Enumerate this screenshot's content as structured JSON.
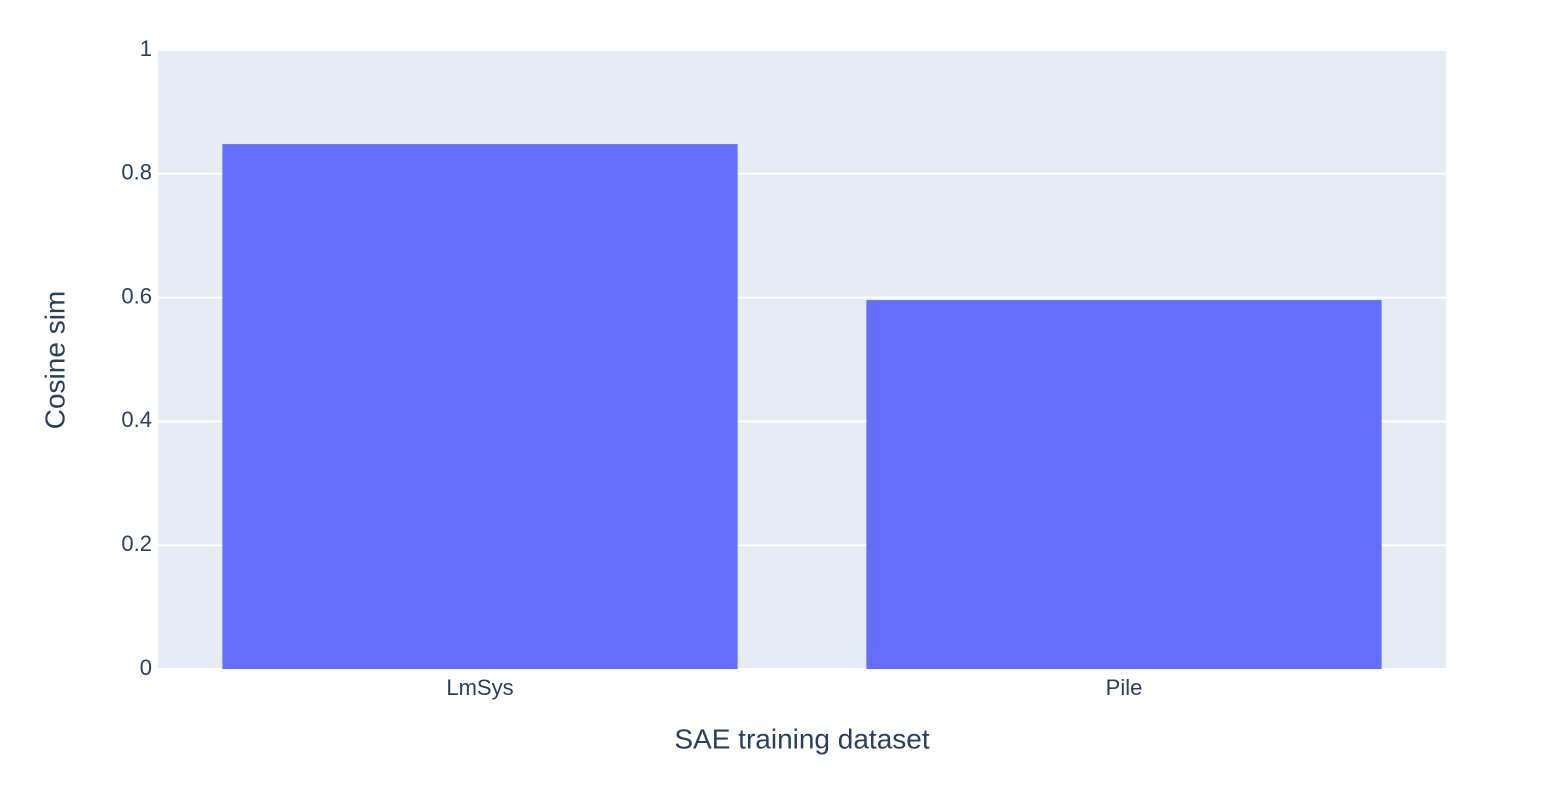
{
  "chart_data": {
    "type": "bar",
    "x_label": "SAE training dataset",
    "y_label": "Cosine sim",
    "categories": [
      "LmSys",
      "Pile"
    ],
    "values": [
      0.848,
      0.596
    ],
    "color": "#636efa",
    "ylim": [
      0,
      1
    ],
    "yticks": [
      0,
      0.2,
      0.4,
      0.6,
      0.8,
      1
    ],
    "grid": true
  }
}
